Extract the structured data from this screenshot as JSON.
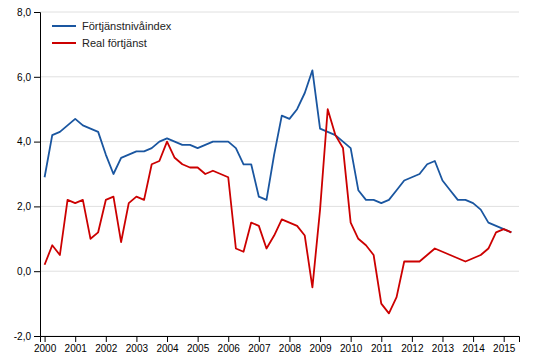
{
  "chart_data": {
    "type": "line",
    "x": [
      2000.0,
      2000.25,
      2000.5,
      2000.75,
      2001.0,
      2001.25,
      2001.5,
      2001.75,
      2002.0,
      2002.25,
      2002.5,
      2002.75,
      2003.0,
      2003.25,
      2003.5,
      2003.75,
      2004.0,
      2004.25,
      2004.5,
      2004.75,
      2005.0,
      2005.25,
      2005.5,
      2005.75,
      2006.0,
      2006.25,
      2006.5,
      2006.75,
      2007.0,
      2007.25,
      2007.5,
      2007.75,
      2008.0,
      2008.25,
      2008.5,
      2008.75,
      2009.0,
      2009.25,
      2009.5,
      2009.75,
      2010.0,
      2010.25,
      2010.5,
      2010.75,
      2011.0,
      2011.25,
      2011.5,
      2011.75,
      2012.0,
      2012.25,
      2012.5,
      2012.75,
      2013.0,
      2013.25,
      2013.5,
      2013.75,
      2014.0,
      2014.25,
      2014.5,
      2014.75,
      2015.0,
      2015.25
    ],
    "series": [
      {
        "name": "Förtjänstnivåindex",
        "color": "#1a56a0",
        "values": [
          2.9,
          4.2,
          4.3,
          4.5,
          4.7,
          4.5,
          4.4,
          4.3,
          3.6,
          3.0,
          3.5,
          3.6,
          3.7,
          3.7,
          3.8,
          4.0,
          4.1,
          4.0,
          3.9,
          3.9,
          3.8,
          3.9,
          4.0,
          4.0,
          4.0,
          3.8,
          3.3,
          3.3,
          2.3,
          2.2,
          3.6,
          4.8,
          4.7,
          5.0,
          5.5,
          6.2,
          4.4,
          4.3,
          4.2,
          4.0,
          3.8,
          2.5,
          2.2,
          2.2,
          2.1,
          2.2,
          2.5,
          2.8,
          2.9,
          3.0,
          3.3,
          3.4,
          2.8,
          2.5,
          2.2,
          2.2,
          2.1,
          1.9,
          1.5,
          1.4,
          1.3,
          1.2
        ]
      },
      {
        "name": "Real förtjänst",
        "color": "#cc0000",
        "values": [
          0.2,
          0.8,
          0.5,
          2.2,
          2.1,
          2.2,
          1.0,
          1.2,
          2.2,
          2.3,
          0.9,
          2.1,
          2.3,
          2.2,
          3.3,
          3.4,
          4.0,
          3.5,
          3.3,
          3.2,
          3.2,
          3.0,
          3.1,
          3.0,
          2.9,
          0.7,
          0.6,
          1.5,
          1.4,
          0.7,
          1.1,
          1.6,
          1.5,
          1.4,
          1.1,
          -0.5,
          1.9,
          5.0,
          4.2,
          3.8,
          1.5,
          1.0,
          0.8,
          0.5,
          -1.0,
          -1.3,
          -0.8,
          0.3,
          0.3,
          0.3,
          0.5,
          0.7,
          0.6,
          0.5,
          0.4,
          0.3,
          0.4,
          0.5,
          0.7,
          1.2,
          1.3,
          1.2
        ]
      }
    ],
    "xlim": [
      1999.85,
      2015.5
    ],
    "xticks": [
      2000,
      2001,
      2002,
      2003,
      2004,
      2005,
      2006,
      2007,
      2008,
      2009,
      2010,
      2011,
      2012,
      2013,
      2014,
      2015
    ],
    "ylim": [
      -2.0,
      8.0
    ],
    "yticks": [
      {
        "value": -2.0,
        "label": "-2,0"
      },
      {
        "value": 0.0,
        "label": "0,0"
      },
      {
        "value": 2.0,
        "label": "2,0"
      },
      {
        "value": 4.0,
        "label": "4,0"
      },
      {
        "value": 6.0,
        "label": "6,0"
      },
      {
        "value": 8.0,
        "label": "8,0"
      }
    ],
    "grid": true,
    "legend": "upper left"
  }
}
